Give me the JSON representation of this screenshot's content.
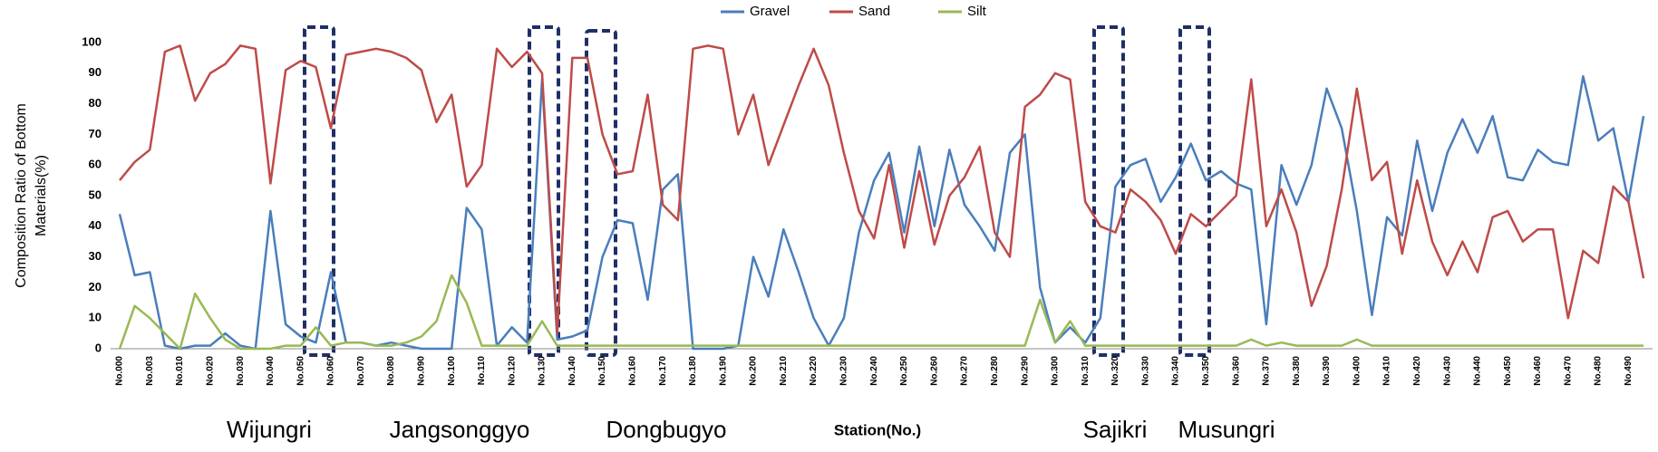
{
  "chart_data": {
    "type": "line",
    "legend": "top",
    "ylabel": [
      "Composition Ratio of Bottom",
      "Materials(%)"
    ],
    "xlabel": "Station(No.)",
    "annotations": [
      "Wijungri",
      "Jangsonggyo",
      "Dongbugyo",
      "Sajikri",
      "Musungri"
    ],
    "ylim": [
      0,
      100
    ],
    "yticks": [
      0,
      10,
      20,
      30,
      40,
      50,
      60,
      70,
      80,
      90,
      100
    ],
    "categories": [
      "No.000",
      null,
      "No.003",
      null,
      "No.010",
      null,
      "No.020",
      null,
      "No.030",
      null,
      "No.040",
      null,
      "No.050",
      null,
      "No.060",
      null,
      "No.070",
      null,
      "No.080",
      null,
      "No.090",
      null,
      "No.100",
      null,
      "No.110",
      null,
      "No.120",
      null,
      "No.130",
      null,
      "No.140",
      null,
      "No.150",
      null,
      "No.160",
      null,
      "No.170",
      null,
      "No.180",
      null,
      "No.190",
      null,
      "No.200",
      null,
      "No.210",
      null,
      "No.220",
      null,
      "No.230",
      null,
      "No.240",
      null,
      "No.250",
      null,
      "No.260",
      null,
      "No.270",
      null,
      "No.280",
      null,
      "No.290",
      null,
      "No.300",
      null,
      "No.310",
      null,
      "No.320",
      null,
      "No.330",
      null,
      "No.340",
      null,
      "No.350",
      null,
      "No.360",
      null,
      "No.370",
      null,
      "No.380",
      null,
      "No.390",
      null,
      "No.400",
      null,
      "No.410",
      null,
      "No.420",
      null,
      "No.430",
      null,
      "No.440",
      null,
      "No.450",
      null,
      "No.460",
      null,
      "No.470",
      null,
      "No.480",
      null,
      "No.490",
      null
    ],
    "series": [
      {
        "name": "Gravel",
        "color": "#4a7ebb",
        "values": [
          44,
          24,
          25,
          1,
          0,
          1,
          1,
          5,
          1,
          0,
          45,
          8,
          4,
          2,
          25,
          2,
          2,
          1,
          2,
          1,
          0,
          0,
          0,
          46,
          39,
          1,
          7,
          2,
          88,
          3,
          4,
          6,
          30,
          42,
          41,
          16,
          52,
          57,
          0,
          0,
          0,
          1,
          30,
          17,
          39,
          25,
          10,
          1,
          10,
          38,
          55,
          64,
          38,
          66,
          40,
          65,
          47,
          40,
          32,
          64,
          70,
          20,
          2,
          7,
          2,
          10,
          53,
          60,
          62,
          48,
          56,
          67,
          55,
          58,
          54,
          52,
          8,
          60,
          47,
          60,
          85,
          72,
          45,
          11,
          43,
          37,
          68,
          45,
          64,
          75,
          64,
          76,
          56,
          55,
          65,
          61,
          60,
          89,
          68,
          72,
          48,
          76
        ]
      },
      {
        "name": "Sand",
        "color": "#be4b48",
        "values": [
          55,
          61,
          65,
          97,
          99,
          81,
          90,
          93,
          99,
          98,
          54,
          91,
          94,
          92,
          72,
          96,
          97,
          98,
          97,
          95,
          91,
          74,
          83,
          53,
          60,
          98,
          92,
          97,
          90,
          5,
          95,
          95,
          70,
          57,
          58,
          83,
          47,
          42,
          98,
          99,
          98,
          70,
          83,
          60,
          73,
          86,
          98,
          86,
          64,
          45,
          36,
          60,
          33,
          58,
          34,
          50,
          56,
          66,
          38,
          30,
          79,
          83,
          90,
          88,
          48,
          40,
          38,
          52,
          48,
          42,
          31,
          44,
          40,
          45,
          50,
          88,
          40,
          52,
          38,
          14,
          27,
          52,
          85,
          55,
          61,
          31,
          55,
          35,
          24,
          35,
          25,
          43,
          45,
          35,
          39,
          39,
          10,
          32,
          28,
          53,
          48,
          23
        ]
      },
      {
        "name": "Silt",
        "color": "#98b954",
        "values": [
          0,
          14,
          10,
          5,
          0,
          18,
          10,
          3,
          0,
          0,
          0,
          1,
          1,
          7,
          1,
          2,
          2,
          1,
          1,
          2,
          4,
          9,
          24,
          15,
          1,
          1,
          1,
          1,
          9,
          1,
          1,
          1,
          1,
          1,
          1,
          1,
          1,
          1,
          1,
          1,
          1,
          1,
          1,
          1,
          1,
          1,
          1,
          1,
          1,
          1,
          1,
          1,
          1,
          1,
          1,
          1,
          1,
          1,
          1,
          1,
          1,
          16,
          2,
          9,
          1,
          1,
          1,
          1,
          1,
          1,
          1,
          1,
          1,
          1,
          1,
          3,
          1,
          2,
          1,
          1,
          1,
          1,
          3,
          1,
          1,
          1,
          1,
          1,
          1,
          1,
          1,
          1,
          1,
          1,
          1,
          1,
          1,
          1,
          1,
          1,
          1,
          1
        ]
      }
    ]
  }
}
